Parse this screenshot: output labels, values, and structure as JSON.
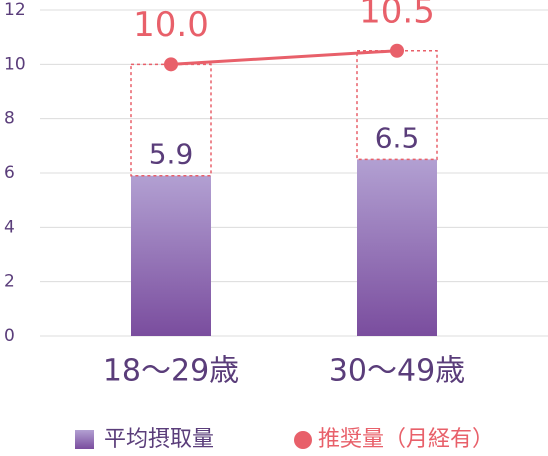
{
  "chart_data": {
    "type": "bar",
    "categories": [
      "18～29歳",
      "30～49歳"
    ],
    "ylim": [
      0,
      12
    ],
    "yticks": [
      0,
      2,
      4,
      6,
      8,
      10,
      12
    ],
    "grid": true,
    "series": [
      {
        "name": "平均摂取量",
        "type": "bar",
        "color": "#8e6bb5",
        "values": [
          5.9,
          6.5
        ]
      },
      {
        "name": "推奨量（月経有）",
        "type": "line",
        "color": "#e8606a",
        "values": [
          10,
          10.5
        ],
        "value_labels": [
          "10.0",
          "10.5"
        ]
      }
    ]
  }
}
